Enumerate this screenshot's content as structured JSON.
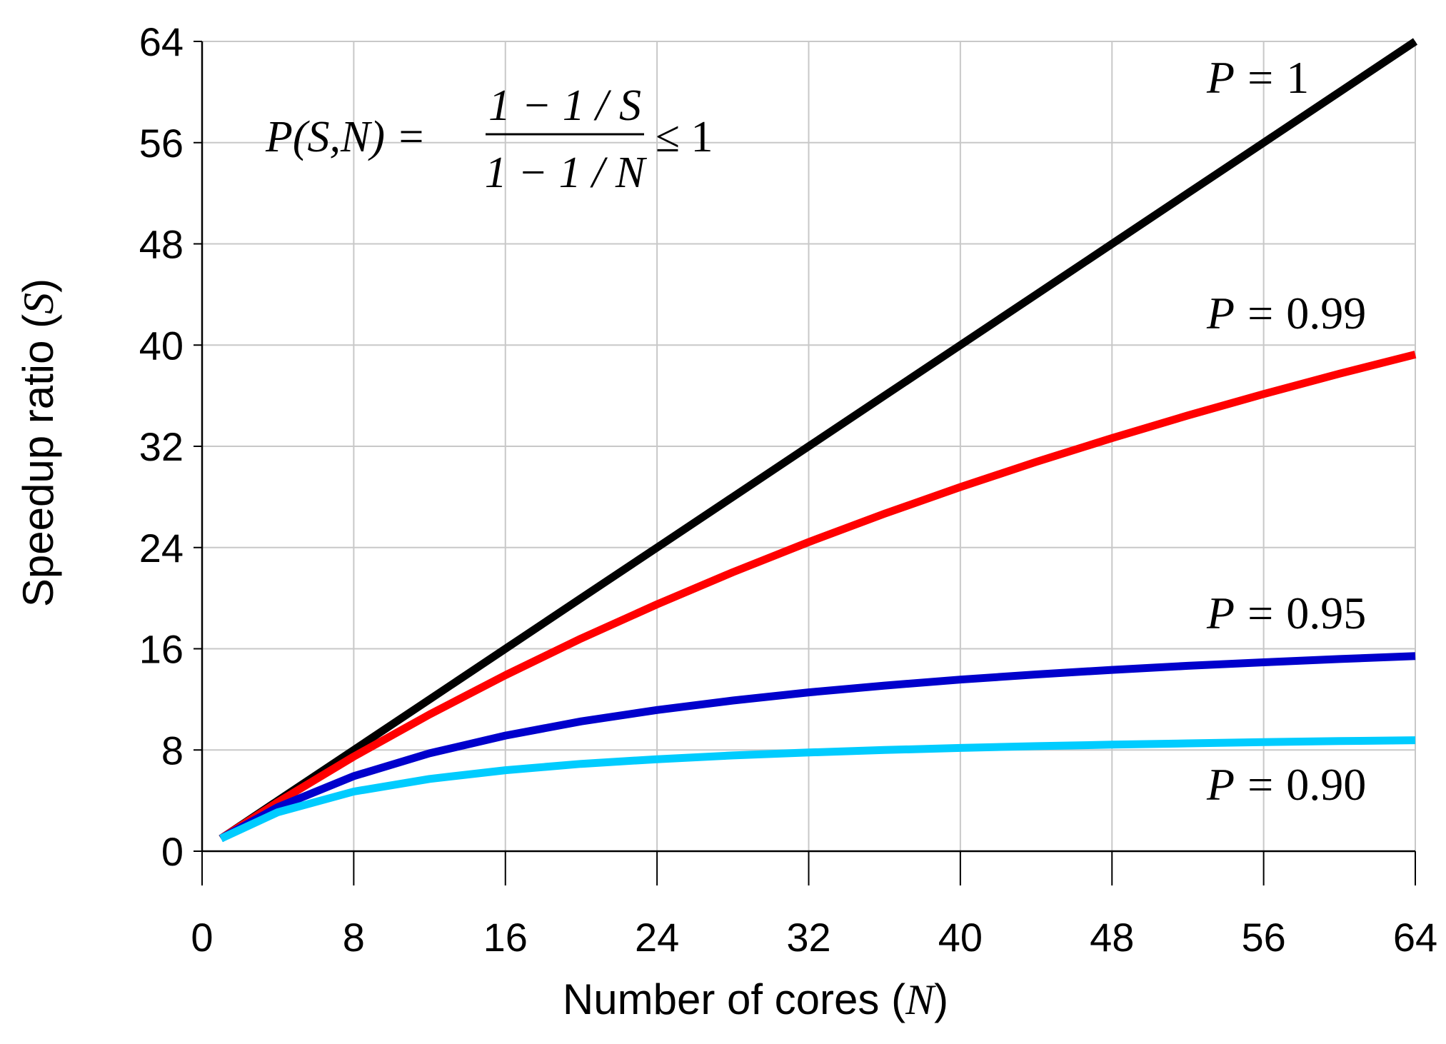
{
  "chart_data": {
    "type": "line",
    "title": "",
    "xlabel": {
      "prefix": "Number of cores (",
      "var": "N",
      "suffix": ")"
    },
    "ylabel": {
      "prefix": "Speedup ratio (",
      "var": "S",
      "suffix": ")"
    },
    "xlim": [
      0,
      64
    ],
    "ylim": [
      0,
      64
    ],
    "xticks": [
      0,
      8,
      16,
      24,
      32,
      40,
      48,
      56,
      64
    ],
    "yticks": [
      0,
      8,
      16,
      24,
      32,
      40,
      48,
      56,
      64
    ],
    "grid": true,
    "formula": {
      "lhs": "P(S,N) =",
      "numerator": "1 − 1 / S",
      "denominator": "1 − 1 / N",
      "rhs": "≤ 1"
    },
    "x": [
      1,
      4,
      8,
      12,
      16,
      20,
      24,
      28,
      32,
      36,
      40,
      44,
      48,
      52,
      56,
      60,
      64
    ],
    "series": [
      {
        "name": "P = 1",
        "var": "P",
        "eq": "=",
        "value": "1",
        "color": "#000000",
        "values": [
          1,
          4,
          8,
          12,
          16,
          20,
          24,
          28,
          32,
          36,
          40,
          44,
          48,
          52,
          56,
          60,
          64
        ]
      },
      {
        "name": "P = 0.99",
        "var": "P",
        "eq": "=",
        "value": "0.99",
        "color": "#ff0000",
        "values": [
          1,
          3.88,
          7.48,
          10.81,
          13.91,
          16.81,
          19.51,
          22.05,
          24.43,
          26.67,
          28.78,
          30.77,
          32.65,
          34.44,
          36.13,
          37.74,
          39.26
        ]
      },
      {
        "name": "P = 0.95",
        "var": "P",
        "eq": "=",
        "value": "0.95",
        "color": "#0000cc",
        "values": [
          1,
          3.48,
          5.93,
          7.74,
          9.14,
          10.26,
          11.16,
          11.91,
          12.55,
          13.09,
          13.56,
          13.97,
          14.33,
          14.65,
          14.93,
          15.19,
          15.42
        ]
      },
      {
        "name": "P = 0.90",
        "var": "P",
        "eq": "=",
        "value": "0.90",
        "color": "#00ccff",
        "values": [
          1,
          3.08,
          4.71,
          5.71,
          6.4,
          6.9,
          7.27,
          7.57,
          7.8,
          8.0,
          8.16,
          8.3,
          8.42,
          8.52,
          8.62,
          8.7,
          8.77
        ]
      }
    ],
    "legend": "inline-right"
  }
}
